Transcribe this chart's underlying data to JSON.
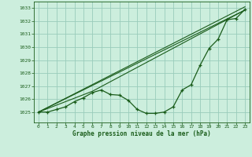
{
  "title": "Graphe pression niveau de la mer (hPa)",
  "bg_color": "#cceedd",
  "grid_color": "#99ccbb",
  "line_color": "#1a5c1a",
  "xlim": [
    -0.5,
    23.5
  ],
  "ylim": [
    1024.2,
    1033.5
  ],
  "yticks": [
    1025,
    1026,
    1027,
    1028,
    1029,
    1030,
    1031,
    1032,
    1033
  ],
  "xticks": [
    0,
    1,
    2,
    3,
    4,
    5,
    6,
    7,
    8,
    9,
    10,
    11,
    12,
    13,
    14,
    15,
    16,
    17,
    18,
    19,
    20,
    21,
    22,
    23
  ],
  "line1_x": [
    0,
    1,
    2,
    3,
    4,
    5,
    6,
    7,
    8,
    9,
    10,
    11,
    12,
    13,
    14,
    15,
    16,
    17,
    18,
    19,
    20,
    21,
    22,
    23
  ],
  "line1_y": [
    1025.0,
    1025.0,
    1025.2,
    1025.4,
    1025.8,
    1026.1,
    1026.5,
    1026.7,
    1026.35,
    1026.3,
    1025.9,
    1025.2,
    1024.9,
    1024.9,
    1025.0,
    1025.4,
    1026.7,
    1027.1,
    1028.6,
    1029.9,
    1030.6,
    1032.1,
    1032.2,
    1032.9
  ],
  "line2_x": [
    0,
    23
  ],
  "line2_y": [
    1025.0,
    1032.85
  ],
  "line3_x": [
    0,
    23
  ],
  "line3_y": [
    1025.0,
    1033.1
  ],
  "line4_x": [
    0,
    6,
    23
  ],
  "line4_y": [
    1025.0,
    1026.6,
    1032.85
  ]
}
